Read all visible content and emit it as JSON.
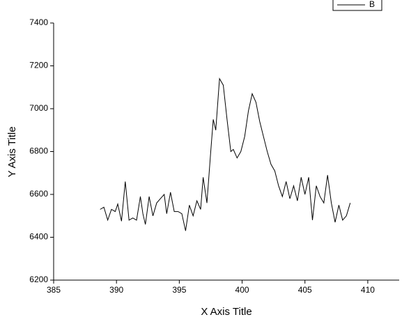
{
  "chart_data": {
    "type": "line",
    "x_label": "X Axis Title",
    "y_label": "Y Axis Title",
    "x": [
      388.7,
      389.0,
      389.3,
      389.6,
      389.9,
      390.1,
      390.4,
      390.7,
      391.0,
      391.3,
      391.6,
      391.9,
      392.1,
      392.3,
      392.6,
      392.9,
      393.2,
      393.5,
      393.8,
      394.0,
      394.3,
      394.6,
      394.9,
      395.2,
      395.5,
      395.8,
      396.1,
      396.4,
      396.7,
      396.9,
      397.2,
      397.5,
      397.7,
      397.9,
      398.2,
      398.5,
      398.8,
      399.1,
      399.3,
      399.6,
      399.9,
      400.2,
      400.5,
      400.8,
      401.1,
      401.4,
      401.7,
      402.0,
      402.3,
      402.6,
      402.9,
      403.2,
      403.5,
      403.8,
      404.1,
      404.4,
      404.7,
      405.0,
      405.3,
      405.6,
      405.9,
      406.2,
      406.5,
      406.8,
      407.1,
      407.4,
      407.7,
      408.0,
      408.3,
      408.6
    ],
    "series": [
      {
        "name": "B",
        "color": "#000000",
        "values": [
          6530,
          6540,
          6480,
          6530,
          6520,
          6555,
          6475,
          6660,
          6480,
          6490,
          6480,
          6590,
          6510,
          6460,
          6590,
          6500,
          6560,
          6580,
          6600,
          6510,
          6610,
          6520,
          6520,
          6510,
          6430,
          6550,
          6500,
          6570,
          6530,
          6680,
          6560,
          6800,
          6950,
          6900,
          7140,
          7110,
          6950,
          6800,
          6810,
          6770,
          6800,
          6870,
          6990,
          7070,
          7030,
          6940,
          6870,
          6800,
          6740,
          6710,
          6640,
          6590,
          6660,
          6580,
          6640,
          6570,
          6680,
          6600,
          6680,
          6480,
          6640,
          6590,
          6560,
          6690,
          6560,
          6470,
          6550,
          6480,
          6500,
          6560
        ]
      }
    ],
    "xlim": [
      385,
      412.5
    ],
    "xticks": [
      385,
      390,
      395,
      400,
      405,
      410
    ],
    "ylim": [
      6200,
      7400
    ],
    "yticks": [
      6200,
      6400,
      6600,
      6800,
      7000,
      7200,
      7400
    ],
    "legend": "top-right"
  }
}
